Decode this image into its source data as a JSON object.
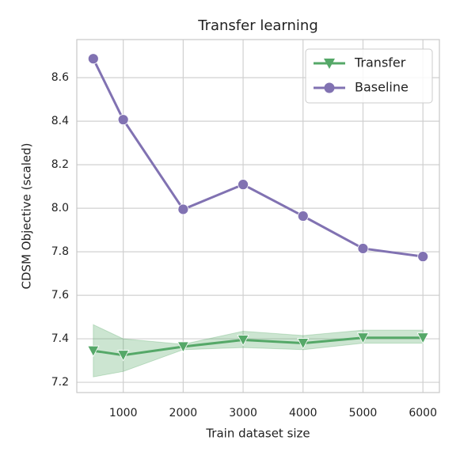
{
  "chart_data": {
    "type": "line",
    "title": "Transfer learning",
    "xlabel": "Train dataset size",
    "ylabel": "CDSM Objective (scaled)",
    "x": [
      500,
      1000,
      2000,
      3000,
      4000,
      5000,
      6000
    ],
    "series": [
      {
        "name": "Transfer",
        "color": "#55a868",
        "marker": "triangle-down",
        "values": [
          7.345,
          7.325,
          7.364,
          7.395,
          7.38,
          7.405,
          7.405
        ],
        "band": {
          "lower": [
            7.225,
            7.25,
            7.35,
            7.36,
            7.35,
            7.38,
            7.38
          ],
          "upper": [
            7.465,
            7.4,
            7.375,
            7.435,
            7.415,
            7.44,
            7.44
          ]
        }
      },
      {
        "name": "Baseline",
        "color": "#8172b2",
        "marker": "circle",
        "values": [
          8.687,
          8.407,
          7.995,
          8.109,
          7.964,
          7.815,
          7.778
        ]
      }
    ],
    "xlim": [
      225,
      6275
    ],
    "xticks": [
      1000,
      2000,
      3000,
      4000,
      5000,
      6000
    ],
    "ylim": [
      7.153,
      8.775
    ],
    "yticks": [
      7.2,
      7.4,
      7.6,
      7.8,
      {
        "value": 8,
        "label": "8.0"
      },
      8.2,
      8.4,
      8.6
    ],
    "grid": true,
    "legend": "upper right"
  }
}
